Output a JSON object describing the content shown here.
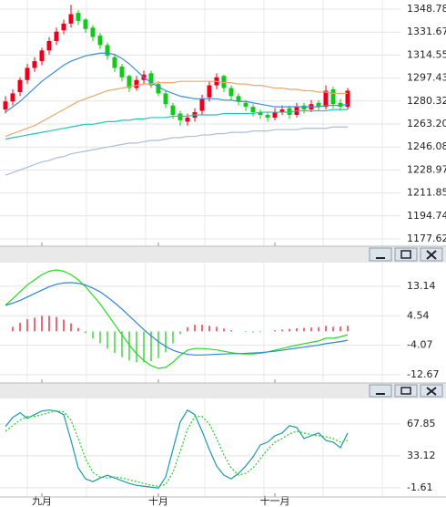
{
  "chart_data": [
    {
      "type": "candlestick",
      "categories": [
        null,
        null,
        null,
        null,
        null,
        "九月",
        null,
        null,
        null,
        null,
        null,
        null,
        null,
        null,
        null,
        null,
        null,
        null,
        null,
        null,
        null,
        "十月",
        null,
        null,
        null,
        null,
        null,
        null,
        null,
        null,
        null,
        null,
        null,
        null,
        null,
        null,
        null,
        "十一月",
        null,
        null,
        null,
        null,
        null,
        null,
        null,
        null,
        null,
        null
      ],
      "open": [
        1274,
        1280,
        1287,
        1296,
        1305,
        1310,
        1318,
        1325,
        1333,
        1338,
        1346,
        1341,
        1335,
        1329,
        1322,
        1313,
        1306,
        1299,
        1290,
        1296,
        1301,
        1293,
        1286,
        1277,
        1271,
        1265,
        1268,
        1273,
        1283,
        1292,
        1299,
        1290,
        1284,
        1279,
        1276,
        1272,
        1270,
        1268,
        1272,
        1275,
        1270,
        1277,
        1274,
        1279,
        1276,
        1289,
        1279,
        1276
      ],
      "high": [
        1284,
        1289,
        1298,
        1308,
        1313,
        1320,
        1328,
        1335,
        1341,
        1352,
        1348,
        1342,
        1337,
        1331,
        1324,
        1315,
        1308,
        1300,
        1299,
        1303,
        1303,
        1295,
        1288,
        1279,
        1273,
        1271,
        1275,
        1285,
        1295,
        1301,
        1300,
        1292,
        1286,
        1281,
        1278,
        1274,
        1272,
        1275,
        1277,
        1277,
        1279,
        1279,
        1281,
        1281,
        1292,
        1291,
        1282,
        1290
      ],
      "low": [
        1271,
        1277,
        1284,
        1293,
        1302,
        1307,
        1315,
        1322,
        1330,
        1335,
        1337,
        1331,
        1325,
        1319,
        1311,
        1302,
        1295,
        1287,
        1288,
        1293,
        1290,
        1284,
        1275,
        1267,
        1262,
        1262,
        1265,
        1270,
        1280,
        1289,
        1287,
        1281,
        1277,
        1273,
        1269,
        1267,
        1265,
        1266,
        1270,
        1267,
        1268,
        1271,
        1272,
        1273,
        1274,
        1275,
        1273,
        1274
      ],
      "close": [
        1280,
        1286,
        1296,
        1305,
        1310,
        1318,
        1325,
        1332,
        1338,
        1345,
        1340,
        1334,
        1328,
        1322,
        1314,
        1305,
        1298,
        1290,
        1296,
        1300,
        1292,
        1286,
        1278,
        1270,
        1266,
        1268,
        1272,
        1282,
        1292,
        1298,
        1290,
        1284,
        1280,
        1276,
        1272,
        1270,
        1268,
        1272,
        1274,
        1270,
        1276,
        1274,
        1278,
        1276,
        1288,
        1278,
        1276,
        1288
      ],
      "up_color": "#e8001c",
      "down_color": "#13c81a",
      "series": [
        {
          "color": "#3a8fd8",
          "values": [
            1272,
            1276,
            1280,
            1285,
            1290,
            1295,
            1299,
            1303,
            1307,
            1310,
            1312,
            1314,
            1315,
            1316,
            1316,
            1315,
            1312,
            1308,
            1303,
            1298,
            1294,
            1291,
            1288,
            1286,
            1284,
            1283,
            1282,
            1282,
            1282,
            1282,
            1281,
            1281,
            1280,
            1280,
            1279,
            1278,
            1277,
            1276,
            1276,
            1276,
            1276,
            1276,
            1276,
            1276,
            1277,
            1277,
            1277,
            1278
          ]
        },
        {
          "color": "#f0a66a",
          "values": [
            1254,
            1256,
            1258,
            1260,
            1262,
            1265,
            1268,
            1271,
            1274,
            1277,
            1280,
            1282,
            1284,
            1286,
            1288,
            1289,
            1290,
            1291,
            1292,
            1293,
            1293,
            1294,
            1294,
            1294,
            1295,
            1295,
            1295,
            1295,
            1295,
            1295,
            1294,
            1294,
            1293,
            1293,
            1292,
            1292,
            1291,
            1290,
            1290,
            1289,
            1289,
            1288,
            1288,
            1287,
            1287,
            1286,
            1286,
            1286
          ]
        },
        {
          "color": "#1fc6b4",
          "values": [
            1252,
            1253,
            1254,
            1255,
            1256,
            1257,
            1258,
            1259,
            1260,
            1261,
            1262,
            1263,
            1263,
            1264,
            1265,
            1265,
            1266,
            1266,
            1267,
            1267,
            1268,
            1268,
            1268,
            1269,
            1269,
            1269,
            1270,
            1270,
            1270,
            1270,
            1271,
            1271,
            1271,
            1271,
            1271,
            1272,
            1272,
            1272,
            1272,
            1272,
            1273,
            1273,
            1273,
            1273,
            1273,
            1274,
            1274,
            1274
          ]
        },
        {
          "color": "#a9bfd6",
          "values": [
            1225,
            1227,
            1229,
            1231,
            1233,
            1235,
            1236,
            1238,
            1239,
            1241,
            1242,
            1243,
            1244,
            1245,
            1246,
            1247,
            1248,
            1249,
            1249,
            1250,
            1251,
            1251,
            1252,
            1253,
            1253,
            1254,
            1254,
            1255,
            1255,
            1256,
            1256,
            1257,
            1257,
            1257,
            1258,
            1258,
            1258,
            1259,
            1259,
            1259,
            1259,
            1260,
            1260,
            1260,
            1260,
            1261,
            1261,
            1261
          ]
        }
      ],
      "ylim": [
        1172.19,
        1355.57
      ],
      "yticks": [
        1348.78,
        1331.67,
        1314.55,
        1297.43,
        1280.32,
        {
          "value": 1263.2,
          "label": "1263.20"
        },
        1246.08,
        1228.97,
        1211.85,
        1194.74,
        1177.62
      ],
      "grid": true
    },
    {
      "type": "macd",
      "series": [
        {
          "color": "#22dd22",
          "values": [
            7.6,
            9.5,
            11.5,
            13.5,
            15,
            16.5,
            17.5,
            17.9,
            17.5,
            16.5,
            15,
            13,
            10.5,
            8,
            5,
            2,
            -1,
            -4,
            -6.5,
            -8.5,
            -10,
            -10.8,
            -10.5,
            -9,
            -7,
            -5.5,
            -5,
            -5,
            -5.2,
            -5.4,
            -5.8,
            -6.2,
            -6.5,
            -6.6,
            -6.6,
            -6.4,
            -6,
            -5.5,
            -5,
            -4.5,
            -4,
            -3.6,
            -3.2,
            -2.8,
            -2,
            -2,
            -1.6,
            -1
          ]
        },
        {
          "color": "#2f86d6",
          "values": [
            7.6,
            8.2,
            9,
            10,
            11,
            12,
            13,
            13.7,
            14.1,
            14.2,
            14,
            13.5,
            12.6,
            11.5,
            10,
            8.3,
            6.5,
            4.5,
            2.5,
            0.5,
            -1.3,
            -3,
            -4.4,
            -5.5,
            -6.2,
            -6.7,
            -6.9,
            -6.9,
            -6.8,
            -6.7,
            -6.6,
            -6.5,
            -6.5,
            -6.4,
            -6.3,
            -6.2,
            -6,
            -5.8,
            -5.5,
            -5.2,
            -4.9,
            -4.6,
            -4.3,
            -4,
            -3.6,
            -3.3,
            -3,
            -2.6
          ]
        }
      ],
      "histogram": [
        0,
        1.3,
        2.5,
        3.5,
        4,
        4.5,
        4.5,
        4.2,
        3.4,
        2.3,
        1,
        -0.5,
        -2.1,
        -3.5,
        -5,
        -6.3,
        -7.5,
        -8.5,
        -9,
        -9,
        -8.7,
        -7.8,
        -6.1,
        -3.5,
        -0.8,
        1.2,
        1.9,
        1.9,
        1.6,
        1.3,
        0.8,
        0.3,
        0,
        -0.2,
        -0.3,
        -0.2,
        0,
        0.3,
        0.5,
        0.7,
        0.9,
        1,
        1.1,
        1.2,
        1.6,
        1.3,
        1.4,
        1.6
      ],
      "up_color": "#e8001c",
      "down_color": "#13c81a",
      "ylim": [
        -15.05,
        20.02
      ],
      "yticks": [
        13.14,
        4.54,
        -4.07,
        -12.67
      ],
      "grid": true
    },
    {
      "type": "line",
      "series": [
        {
          "color": "#1a9aa6",
          "values": [
            65,
            75,
            80,
            74,
            78,
            82,
            83,
            82,
            78,
            50,
            20,
            8,
            5,
            9,
            12,
            9,
            6,
            3,
            1,
            0,
            -1,
            -2,
            10,
            40,
            70,
            83,
            78,
            60,
            40,
            22,
            12,
            8,
            14,
            22,
            32,
            45,
            48,
            55,
            58,
            66,
            64,
            52,
            55,
            58,
            50,
            48,
            42,
            58
          ]
        },
        {
          "color": "#22cc22",
          "dashed": true,
          "values": [
            60,
            66,
            72,
            76,
            76,
            78,
            80,
            82,
            81,
            72,
            52,
            30,
            15,
            10,
            9,
            10,
            9,
            7,
            5,
            3,
            1,
            0,
            2,
            15,
            38,
            62,
            76,
            76,
            68,
            52,
            34,
            20,
            12,
            14,
            20,
            30,
            40,
            48,
            52,
            57,
            60,
            58,
            56,
            55,
            54,
            52,
            48,
            50
          ]
        }
      ],
      "ylim": [
        -11.7,
        95.6
      ],
      "yticks": [
        67.85,
        33.12,
        -1.61
      ],
      "grid": true
    }
  ]
}
